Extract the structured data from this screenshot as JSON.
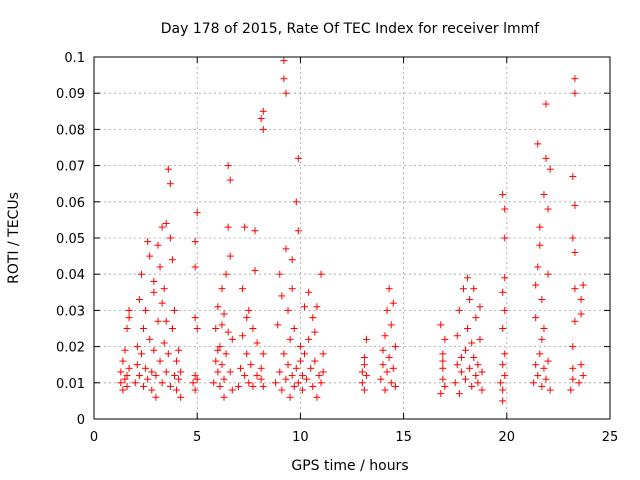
{
  "chart_data": {
    "type": "scatter",
    "title": "Day 178 of 2015, Rate Of TEC Index for receiver lmmf",
    "xlabel": "GPS time / hours",
    "ylabel": "ROTI / TECUs",
    "xlim": [
      0,
      25
    ],
    "ylim": [
      0,
      0.1
    ],
    "x_ticks": [
      0,
      5,
      10,
      15,
      20,
      25
    ],
    "x_tick_labels": [
      "0",
      "5",
      "10",
      "15",
      "20",
      "25"
    ],
    "y_ticks": [
      0,
      0.01,
      0.02,
      0.03,
      0.04,
      0.05,
      0.06,
      0.07,
      0.08,
      0.09,
      0.1
    ],
    "y_tick_labels": [
      "0",
      "0.01",
      "0.02",
      "0.03",
      "0.04",
      "0.05",
      "0.06",
      "0.07",
      "0.08",
      "0.09",
      "0.1"
    ],
    "grid": true,
    "marker": "+",
    "color": "#ff0000",
    "series": [
      {
        "name": "ROTI",
        "points": [
          [
            1.3,
            0.01
          ],
          [
            1.3,
            0.013
          ],
          [
            1.4,
            0.008
          ],
          [
            1.4,
            0.016
          ],
          [
            1.5,
            0.011
          ],
          [
            1.5,
            0.019
          ],
          [
            1.6,
            0.012
          ],
          [
            1.6,
            0.009
          ],
          [
            1.7,
            0.014
          ],
          [
            1.7,
            0.03
          ],
          [
            1.7,
            0.028
          ],
          [
            1.6,
            0.025
          ],
          [
            2.0,
            0.01
          ],
          [
            2.1,
            0.015
          ],
          [
            2.1,
            0.02
          ],
          [
            2.2,
            0.012
          ],
          [
            2.2,
            0.033
          ],
          [
            2.3,
            0.018
          ],
          [
            2.3,
            0.04
          ],
          [
            2.4,
            0.009
          ],
          [
            2.4,
            0.025
          ],
          [
            2.5,
            0.014
          ],
          [
            2.5,
            0.03
          ],
          [
            2.6,
            0.011
          ],
          [
            2.6,
            0.049
          ],
          [
            2.7,
            0.022
          ],
          [
            2.7,
            0.045
          ],
          [
            2.8,
            0.013
          ],
          [
            2.8,
            0.008
          ],
          [
            2.9,
            0.019
          ],
          [
            2.9,
            0.035
          ],
          [
            3.0,
            0.006
          ],
          [
            3.0,
            0.012
          ],
          [
            3.1,
            0.027
          ],
          [
            3.1,
            0.048
          ],
          [
            3.2,
            0.016
          ],
          [
            3.2,
            0.042
          ],
          [
            3.3,
            0.01
          ],
          [
            3.3,
            0.053
          ],
          [
            3.4,
            0.021
          ],
          [
            3.4,
            0.036
          ],
          [
            3.5,
            0.013
          ],
          [
            3.5,
            0.054
          ],
          [
            3.6,
            0.018
          ],
          [
            3.6,
            0.069
          ],
          [
            3.7,
            0.009
          ],
          [
            3.7,
            0.065
          ],
          [
            3.7,
            0.05
          ],
          [
            3.8,
            0.025
          ],
          [
            3.8,
            0.044
          ],
          [
            3.9,
            0.012
          ],
          [
            3.9,
            0.03
          ],
          [
            4.0,
            0.008
          ],
          [
            4.0,
            0.016
          ],
          [
            4.1,
            0.011
          ],
          [
            4.1,
            0.019
          ],
          [
            4.2,
            0.006
          ],
          [
            4.2,
            0.013
          ],
          [
            3.5,
            0.027
          ],
          [
            3.3,
            0.032
          ],
          [
            2.9,
            0.038
          ],
          [
            4.8,
            0.01
          ],
          [
            4.9,
            0.012
          ],
          [
            4.9,
            0.008
          ],
          [
            5.0,
            0.011
          ],
          [
            4.9,
            0.028
          ],
          [
            5.0,
            0.025
          ],
          [
            4.9,
            0.049
          ],
          [
            5.0,
            0.057
          ],
          [
            4.9,
            0.042
          ],
          [
            5.8,
            0.01
          ],
          [
            5.9,
            0.016
          ],
          [
            5.9,
            0.025
          ],
          [
            6.0,
            0.013
          ],
          [
            6.0,
            0.031
          ],
          [
            6.1,
            0.009
          ],
          [
            6.1,
            0.02
          ],
          [
            6.2,
            0.015
          ],
          [
            6.2,
            0.036
          ],
          [
            6.3,
            0.011
          ],
          [
            6.3,
            0.006
          ],
          [
            6.4,
            0.018
          ],
          [
            6.4,
            0.04
          ],
          [
            6.5,
            0.024
          ],
          [
            6.5,
            0.053
          ],
          [
            6.5,
            0.07
          ],
          [
            6.6,
            0.013
          ],
          [
            6.6,
            0.045
          ],
          [
            6.6,
            0.066
          ],
          [
            6.7,
            0.008
          ],
          [
            6.7,
            0.022
          ],
          [
            6.3,
            0.029
          ],
          [
            6.0,
            0.019
          ],
          [
            6.2,
            0.026
          ],
          [
            7.0,
            0.009
          ],
          [
            7.1,
            0.014
          ],
          [
            7.2,
            0.023
          ],
          [
            7.2,
            0.036
          ],
          [
            7.3,
            0.012
          ],
          [
            7.3,
            0.053
          ],
          [
            7.4,
            0.018
          ],
          [
            7.4,
            0.028
          ],
          [
            7.5,
            0.01
          ],
          [
            7.6,
            0.015
          ],
          [
            7.7,
            0.009
          ],
          [
            7.8,
            0.041
          ],
          [
            7.8,
            0.052
          ],
          [
            7.9,
            0.021
          ],
          [
            7.9,
            0.012
          ],
          [
            7.5,
            0.03
          ],
          [
            7.7,
            0.025
          ],
          [
            8.1,
            0.011
          ],
          [
            8.1,
            0.014
          ],
          [
            8.2,
            0.018
          ],
          [
            8.2,
            0.009
          ],
          [
            8.2,
            0.08
          ],
          [
            8.2,
            0.085
          ],
          [
            8.1,
            0.083
          ],
          [
            8.8,
            0.01
          ],
          [
            8.9,
            0.026
          ],
          [
            9.0,
            0.013
          ],
          [
            9.0,
            0.04
          ],
          [
            9.1,
            0.008
          ],
          [
            9.1,
            0.034
          ],
          [
            9.2,
            0.018
          ],
          [
            9.2,
            0.094
          ],
          [
            9.2,
            0.099
          ],
          [
            9.3,
            0.011
          ],
          [
            9.3,
            0.047
          ],
          [
            9.4,
            0.015
          ],
          [
            9.4,
            0.03
          ],
          [
            9.5,
            0.006
          ],
          [
            9.5,
            0.022
          ],
          [
            9.6,
            0.012
          ],
          [
            9.6,
            0.036
          ],
          [
            9.7,
            0.009
          ],
          [
            9.7,
            0.025
          ],
          [
            9.8,
            0.014
          ],
          [
            9.8,
            0.06
          ],
          [
            9.9,
            0.01
          ],
          [
            9.9,
            0.072
          ],
          [
            10.0,
            0.016
          ],
          [
            10.0,
            0.02
          ],
          [
            10.1,
            0.008
          ],
          [
            10.1,
            0.012
          ],
          [
            10.2,
            0.031
          ],
          [
            10.2,
            0.018
          ],
          [
            10.3,
            0.011
          ],
          [
            10.4,
            0.022
          ],
          [
            10.5,
            0.014
          ],
          [
            10.6,
            0.009
          ],
          [
            10.6,
            0.028
          ],
          [
            10.7,
            0.016
          ],
          [
            10.8,
            0.006
          ],
          [
            10.8,
            0.031
          ],
          [
            10.9,
            0.012
          ],
          [
            11.0,
            0.01
          ],
          [
            11.0,
            0.04
          ],
          [
            11.1,
            0.018
          ],
          [
            11.1,
            0.013
          ],
          [
            9.6,
            0.044
          ],
          [
            9.9,
            0.052
          ],
          [
            9.3,
            0.09
          ],
          [
            10.4,
            0.035
          ],
          [
            10.7,
            0.024
          ],
          [
            13.0,
            0.01
          ],
          [
            13.0,
            0.013
          ],
          [
            13.1,
            0.017
          ],
          [
            13.1,
            0.008
          ],
          [
            13.2,
            0.012
          ],
          [
            13.2,
            0.022
          ],
          [
            13.1,
            0.015
          ],
          [
            13.9,
            0.011
          ],
          [
            14.0,
            0.015
          ],
          [
            14.0,
            0.019
          ],
          [
            14.1,
            0.008
          ],
          [
            14.1,
            0.023
          ],
          [
            14.2,
            0.013
          ],
          [
            14.2,
            0.03
          ],
          [
            14.3,
            0.017
          ],
          [
            14.3,
            0.036
          ],
          [
            14.4,
            0.01
          ],
          [
            14.4,
            0.026
          ],
          [
            14.5,
            0.014
          ],
          [
            14.5,
            0.032
          ],
          [
            14.6,
            0.009
          ],
          [
            14.6,
            0.02
          ],
          [
            16.8,
            0.007
          ],
          [
            16.9,
            0.011
          ],
          [
            16.9,
            0.014
          ],
          [
            16.9,
            0.018
          ],
          [
            17.0,
            0.009
          ],
          [
            17.0,
            0.022
          ],
          [
            16.8,
            0.026
          ],
          [
            16.9,
            0.016
          ],
          [
            17.5,
            0.01
          ],
          [
            17.6,
            0.015
          ],
          [
            17.6,
            0.023
          ],
          [
            17.7,
            0.007
          ],
          [
            17.7,
            0.03
          ],
          [
            17.8,
            0.013
          ],
          [
            17.9,
            0.036
          ],
          [
            18.0,
            0.011
          ],
          [
            18.0,
            0.019
          ],
          [
            18.1,
            0.025
          ],
          [
            18.1,
            0.039
          ],
          [
            18.2,
            0.014
          ],
          [
            18.2,
            0.033
          ],
          [
            18.3,
            0.009
          ],
          [
            18.3,
            0.021
          ],
          [
            18.4,
            0.017
          ],
          [
            18.4,
            0.036
          ],
          [
            18.5,
            0.012
          ],
          [
            18.5,
            0.028
          ],
          [
            18.6,
            0.01
          ],
          [
            18.6,
            0.015
          ],
          [
            18.7,
            0.022
          ],
          [
            18.7,
            0.031
          ],
          [
            18.8,
            0.008
          ],
          [
            18.8,
            0.013
          ],
          [
            17.8,
            0.017
          ],
          [
            19.8,
            0.005
          ],
          [
            19.8,
            0.008
          ],
          [
            19.9,
            0.012
          ],
          [
            19.8,
            0.015
          ],
          [
            19.9,
            0.018
          ],
          [
            19.8,
            0.025
          ],
          [
            19.9,
            0.03
          ],
          [
            19.8,
            0.035
          ],
          [
            19.9,
            0.039
          ],
          [
            19.9,
            0.05
          ],
          [
            19.9,
            0.058
          ],
          [
            19.8,
            0.062
          ],
          [
            19.7,
            0.01
          ],
          [
            21.3,
            0.01
          ],
          [
            21.4,
            0.015
          ],
          [
            21.4,
            0.028
          ],
          [
            21.5,
            0.012
          ],
          [
            21.5,
            0.042
          ],
          [
            21.6,
            0.018
          ],
          [
            21.6,
            0.053
          ],
          [
            21.7,
            0.009
          ],
          [
            21.7,
            0.033
          ],
          [
            21.8,
            0.014
          ],
          [
            21.8,
            0.062
          ],
          [
            21.9,
            0.011
          ],
          [
            21.9,
            0.072
          ],
          [
            21.9,
            0.087
          ],
          [
            22.0,
            0.016
          ],
          [
            22.0,
            0.04
          ],
          [
            22.1,
            0.008
          ],
          [
            22.1,
            0.069
          ],
          [
            21.5,
            0.076
          ],
          [
            21.6,
            0.048
          ],
          [
            21.7,
            0.022
          ],
          [
            21.4,
            0.037
          ],
          [
            21.8,
            0.025
          ],
          [
            22.0,
            0.058
          ],
          [
            23.1,
            0.008
          ],
          [
            23.2,
            0.011
          ],
          [
            23.2,
            0.014
          ],
          [
            23.2,
            0.02
          ],
          [
            23.3,
            0.027
          ],
          [
            23.3,
            0.036
          ],
          [
            23.3,
            0.046
          ],
          [
            23.2,
            0.05
          ],
          [
            23.3,
            0.059
          ],
          [
            23.2,
            0.067
          ],
          [
            23.3,
            0.09
          ],
          [
            23.3,
            0.094
          ],
          [
            23.6,
            0.029
          ],
          [
            23.6,
            0.033
          ],
          [
            23.7,
            0.037
          ],
          [
            23.6,
            0.015
          ],
          [
            23.7,
            0.012
          ],
          [
            23.5,
            0.01
          ]
        ]
      }
    ]
  }
}
